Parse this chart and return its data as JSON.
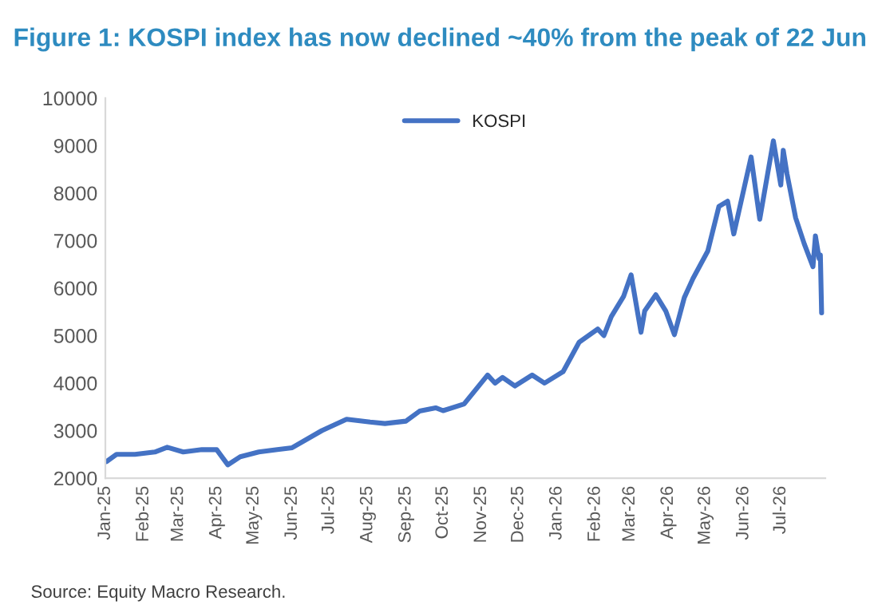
{
  "chart_data": {
    "type": "line",
    "title": "Figure 1: KOSPI index has now declined ~40% from the peak of 22 Jun",
    "annotations": [
      "Source: Equity Macro Research."
    ],
    "series": [
      {
        "name": "KOSPI",
        "color": "#4472c4",
        "x": [
          "2025-01-02",
          "2025-01-10",
          "2025-01-25",
          "2025-02-10",
          "2025-02-20",
          "2025-03-05",
          "2025-03-20",
          "2025-04-01",
          "2025-04-10",
          "2025-04-20",
          "2025-05-05",
          "2025-05-20",
          "2025-06-01",
          "2025-06-25",
          "2025-07-15",
          "2025-08-03",
          "2025-08-15",
          "2025-09-01",
          "2025-09-12",
          "2025-09-25",
          "2025-10-01",
          "2025-10-18",
          "2025-11-06",
          "2025-11-12",
          "2025-11-18",
          "2025-11-28",
          "2025-12-12",
          "2025-12-22",
          "2026-01-06",
          "2026-01-19",
          "2026-02-03",
          "2026-02-08",
          "2026-02-14",
          "2026-02-24",
          "2026-03-02",
          "2026-03-10",
          "2026-03-13",
          "2026-03-22",
          "2026-03-30",
          "2026-04-06",
          "2026-04-14",
          "2026-04-21",
          "2026-05-03",
          "2026-05-12",
          "2026-05-19",
          "2026-05-24",
          "2026-06-07",
          "2026-06-14",
          "2026-06-25",
          "2026-07-01",
          "2026-07-03",
          "2026-07-06",
          "2026-07-13",
          "2026-07-20",
          "2026-07-27",
          "2026-07-29",
          "2026-08-01",
          "2026-08-02",
          "2026-08-03"
        ],
        "values": [
          2350,
          2500,
          2500,
          2550,
          2650,
          2550,
          2600,
          2600,
          2280,
          2450,
          2550,
          2600,
          2640,
          3000,
          3240,
          3180,
          3150,
          3200,
          3410,
          3480,
          3420,
          3560,
          4170,
          4000,
          4120,
          3940,
          4170,
          4000,
          4240,
          4860,
          5140,
          5000,
          5400,
          5830,
          6280,
          5070,
          5520,
          5860,
          5520,
          5020,
          5800,
          6200,
          6780,
          7720,
          7830,
          7140,
          8760,
          7450,
          9100,
          8170,
          8900,
          8410,
          7480,
          6930,
          6450,
          7100,
          6620,
          6700,
          5480
        ]
      }
    ],
    "xlim": [
      "2025-01-01",
      "2026-08-06"
    ],
    "xticks": [
      {
        "value": "2025-01-01",
        "label": "Jan-25"
      },
      {
        "value": "2025-02-01",
        "label": "Feb-25"
      },
      {
        "value": "2025-03-01",
        "label": "Mar-25"
      },
      {
        "value": "2025-04-01",
        "label": "Apr-25"
      },
      {
        "value": "2025-05-01",
        "label": "May-25"
      },
      {
        "value": "2025-06-01",
        "label": "Jun-25"
      },
      {
        "value": "2025-07-01",
        "label": "Jul-25"
      },
      {
        "value": "2025-08-01",
        "label": "Aug-25"
      },
      {
        "value": "2025-09-01",
        "label": "Sep-25"
      },
      {
        "value": "2025-10-01",
        "label": "Oct-25"
      },
      {
        "value": "2025-11-01",
        "label": "Nov-25"
      },
      {
        "value": "2025-12-01",
        "label": "Dec-25"
      },
      {
        "value": "2026-01-01",
        "label": "Jan-26"
      },
      {
        "value": "2026-02-01",
        "label": "Feb-26"
      },
      {
        "value": "2026-03-01",
        "label": "Mar-26"
      },
      {
        "value": "2026-04-01",
        "label": "Apr-26"
      },
      {
        "value": "2026-05-01",
        "label": "May-26"
      },
      {
        "value": "2026-06-01",
        "label": "Jun-26"
      },
      {
        "value": "2026-07-01",
        "label": "Jul-26"
      }
    ],
    "ylim": [
      2000,
      10000
    ],
    "yticks": [
      2000,
      3000,
      4000,
      5000,
      6000,
      7000,
      8000,
      9000,
      10000
    ],
    "legend": "top",
    "grid": false,
    "line_style": "solid",
    "marker": "none"
  }
}
